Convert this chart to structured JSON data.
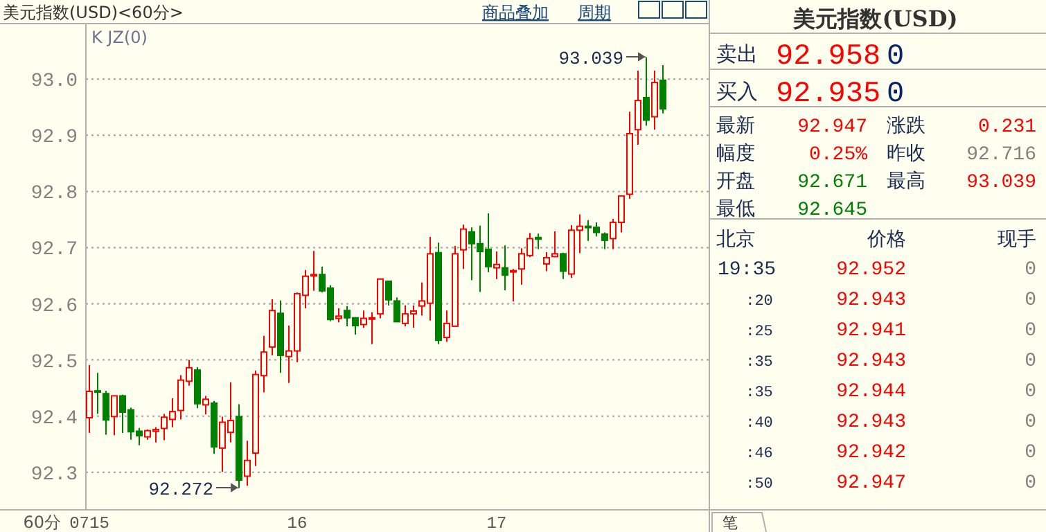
{
  "chart_data": [
    {
      "type": "candlestick",
      "title": "美元指数(USD)<60分>",
      "categories": [
        "0715",
        null,
        null,
        null,
        null,
        null,
        null,
        null,
        null,
        null,
        null,
        null,
        null,
        null,
        null,
        null,
        null,
        null,
        null,
        null,
        null,
        null,
        null,
        null,
        null,
        "16",
        null,
        null,
        null,
        null,
        null,
        null,
        null,
        null,
        null,
        null,
        null,
        null,
        null,
        null,
        null,
        null,
        null,
        null,
        null,
        null,
        null,
        null,
        null,
        "17",
        null,
        null,
        null,
        null,
        null,
        null,
        null,
        null,
        null,
        null,
        null,
        null,
        null,
        null,
        null,
        null,
        null,
        null,
        null,
        null
      ],
      "ohlc": [
        [
          92.397,
          92.491,
          92.37,
          92.444
        ],
        [
          92.445,
          92.477,
          92.404,
          92.443
        ],
        [
          92.44,
          92.445,
          92.367,
          92.393
        ],
        [
          92.399,
          92.436,
          92.366,
          92.436
        ],
        [
          92.436,
          92.438,
          92.37,
          92.407
        ],
        [
          92.411,
          92.415,
          92.358,
          92.372
        ],
        [
          92.373,
          92.379,
          92.348,
          92.365
        ],
        [
          92.363,
          92.376,
          92.358,
          92.374
        ],
        [
          92.373,
          92.38,
          92.353,
          92.376
        ],
        [
          92.378,
          92.404,
          92.357,
          92.398
        ],
        [
          92.394,
          92.432,
          92.38,
          92.408
        ],
        [
          92.41,
          92.473,
          92.394,
          92.464
        ],
        [
          92.462,
          92.5,
          92.454,
          92.486
        ],
        [
          92.482,
          92.487,
          92.414,
          92.422
        ],
        [
          92.42,
          92.436,
          92.403,
          92.43
        ],
        [
          92.423,
          92.427,
          92.333,
          92.345
        ],
        [
          92.343,
          92.399,
          92.301,
          92.389
        ],
        [
          92.371,
          92.46,
          92.353,
          92.392
        ],
        [
          92.399,
          92.421,
          92.272,
          92.286
        ],
        [
          92.293,
          92.356,
          92.276,
          92.321
        ],
        [
          92.334,
          92.481,
          92.311,
          92.474
        ],
        [
          92.472,
          92.543,
          92.442,
          92.514
        ],
        [
          92.523,
          92.608,
          92.508,
          92.588
        ],
        [
          92.583,
          92.606,
          92.477,
          92.508
        ],
        [
          92.506,
          92.561,
          92.459,
          92.516
        ],
        [
          92.516,
          92.62,
          92.496,
          92.618
        ],
        [
          92.615,
          92.66,
          92.592,
          92.649
        ],
        [
          92.65,
          92.694,
          92.623,
          92.652
        ],
        [
          92.652,
          92.666,
          92.62,
          92.623
        ],
        [
          92.628,
          92.633,
          92.569,
          92.572
        ],
        [
          92.574,
          92.592,
          92.567,
          92.578
        ],
        [
          92.588,
          92.596,
          92.56,
          92.575
        ],
        [
          92.575,
          92.575,
          92.545,
          92.561
        ],
        [
          92.563,
          92.588,
          92.557,
          92.574
        ],
        [
          92.574,
          92.585,
          92.528,
          92.575
        ],
        [
          92.582,
          92.644,
          92.574,
          92.644
        ],
        [
          92.64,
          92.64,
          92.597,
          92.607
        ],
        [
          92.605,
          92.611,
          92.568,
          92.568
        ],
        [
          92.565,
          92.597,
          92.56,
          92.582
        ],
        [
          92.582,
          92.597,
          92.557,
          92.587
        ],
        [
          92.596,
          92.638,
          92.579,
          92.605
        ],
        [
          92.601,
          92.719,
          92.57,
          92.689
        ],
        [
          92.691,
          92.709,
          92.528,
          92.535
        ],
        [
          92.54,
          92.588,
          92.532,
          92.565
        ],
        [
          92.56,
          92.703,
          92.56,
          92.689
        ],
        [
          92.696,
          92.741,
          92.662,
          92.733
        ],
        [
          92.728,
          92.736,
          92.642,
          92.707
        ],
        [
          92.707,
          92.739,
          92.621,
          92.693
        ],
        [
          92.697,
          92.761,
          92.656,
          92.666
        ],
        [
          92.664,
          92.693,
          92.644,
          92.67
        ],
        [
          92.664,
          92.704,
          92.624,
          92.651
        ],
        [
          92.657,
          92.662,
          92.604,
          92.659
        ],
        [
          92.662,
          92.699,
          92.634,
          92.689
        ],
        [
          92.686,
          92.726,
          92.683,
          92.716
        ],
        [
          92.718,
          92.725,
          92.697,
          92.715
        ],
        [
          92.671,
          92.692,
          92.658,
          92.682
        ],
        [
          92.684,
          92.729,
          92.684,
          92.689
        ],
        [
          92.689,
          92.691,
          92.644,
          92.658
        ],
        [
          92.653,
          92.74,
          92.646,
          92.731
        ],
        [
          92.731,
          92.759,
          92.69,
          92.738
        ],
        [
          92.738,
          92.749,
          92.712,
          92.736
        ],
        [
          92.736,
          92.745,
          92.72,
          92.727
        ],
        [
          92.724,
          92.727,
          92.697,
          92.713
        ],
        [
          92.716,
          92.751,
          92.697,
          92.745
        ],
        [
          92.745,
          92.792,
          92.727,
          92.792
        ],
        [
          92.795,
          92.942,
          92.787,
          92.903
        ],
        [
          92.91,
          93.015,
          92.883,
          92.962
        ],
        [
          92.967,
          93.039,
          92.917,
          92.927
        ],
        [
          92.933,
          93.015,
          92.91,
          92.994
        ],
        [
          92.998,
          93.025,
          92.939,
          92.947
        ]
      ],
      "ylim": [
        92.233,
        93.099
      ],
      "yticks": [
        {
          "value": 92.3,
          "label": "92.3"
        },
        {
          "value": 92.4,
          "label": "92.4"
        },
        {
          "value": 92.5,
          "label": "92.5"
        },
        {
          "value": 92.6,
          "label": "92.6"
        },
        {
          "value": 92.7,
          "label": "92.7"
        },
        {
          "value": 92.8,
          "label": "92.8"
        },
        {
          "value": 92.9,
          "label": "92.9"
        },
        {
          "value": 93.0,
          "label": "93.0"
        }
      ],
      "grid": "y",
      "annotations": [
        "K JZ(0)",
        "商品叠加",
        "周期",
        "60分",
        "93.039",
        "92.272"
      ]
    },
    {
      "type": "other",
      "title": "美元指数(USD)",
      "annotations": [
        "卖出",
        "92.958",
        "0",
        "买入",
        "92.935",
        "0",
        "最新",
        "92.947",
        "涨跌",
        "0.231",
        "幅度",
        "0.25%",
        "昨收",
        "92.716",
        "开盘",
        "92.671",
        "最高",
        "93.039",
        "最低",
        "92.645",
        "北京",
        "价格",
        "现手",
        "19:35",
        "92.952",
        "0",
        ":20",
        "92.943",
        "0",
        ":25",
        "92.941",
        "0",
        ":35",
        "92.943",
        "0",
        ":35",
        "92.944",
        "0",
        ":40",
        "92.943",
        "0",
        ":46",
        "92.942",
        "0",
        ":50",
        "92.947",
        "0",
        "笔"
      ]
    }
  ]
}
